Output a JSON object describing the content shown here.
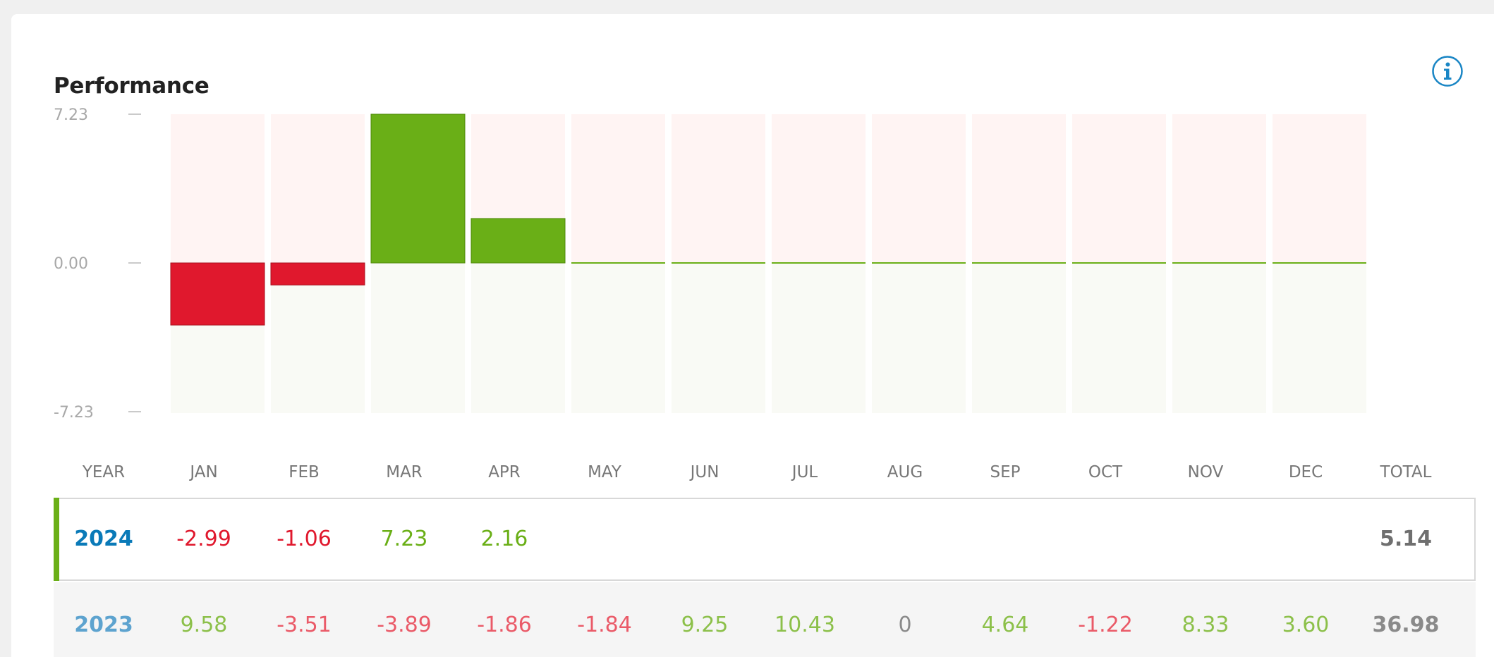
{
  "title": "Performance",
  "icons": {
    "info": "info-icon"
  },
  "colors": {
    "positive": "#6aaf17",
    "negative": "#e0182d",
    "positive_bg": "#f9faf5",
    "negative_bg": "#fff4f3",
    "year_link": "#0a7ab8"
  },
  "table": {
    "headers": [
      "YEAR",
      "JAN",
      "FEB",
      "MAR",
      "APR",
      "MAY",
      "JUN",
      "JUL",
      "AUG",
      "SEP",
      "OCT",
      "NOV",
      "DEC",
      "TOTAL"
    ],
    "rows": [
      {
        "year": "2024",
        "months": [
          "-2.99",
          "-1.06",
          "7.23",
          "2.16",
          "",
          "",
          "",
          "",
          "",
          "",
          "",
          ""
        ],
        "total": "5.14"
      },
      {
        "year": "2023",
        "months": [
          "9.58",
          "-3.51",
          "-3.89",
          "-1.86",
          "-1.84",
          "9.25",
          "10.43",
          "0",
          "4.64",
          "-1.22",
          "8.33",
          "3.60"
        ],
        "total": "36.98"
      }
    ]
  },
  "chart_data": {
    "type": "bar",
    "categories": [
      "JAN",
      "FEB",
      "MAR",
      "APR",
      "MAY",
      "JUN",
      "JUL",
      "AUG",
      "SEP",
      "OCT",
      "NOV",
      "DEC"
    ],
    "values": [
      -2.99,
      -1.06,
      7.23,
      2.16,
      0,
      0,
      0,
      0,
      0,
      0,
      0,
      0
    ],
    "yticks": [
      "7.23",
      "0.00",
      "-7.23"
    ],
    "ylim": [
      -7.23,
      7.23
    ],
    "title": "",
    "xlabel": "",
    "ylabel": ""
  }
}
